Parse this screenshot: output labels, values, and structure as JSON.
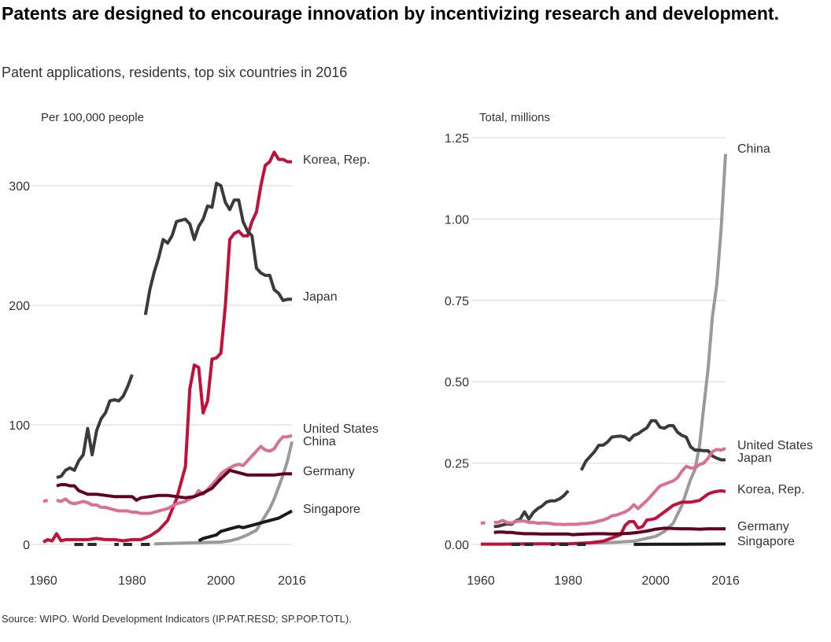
{
  "title": "Patents are designed to encourage innovation by incentivizing research and development.",
  "subtitle": "Patent applications, residents, top six countries in 2016",
  "source": "Source: WIPO. World Development Indicators (IP.PAT.RESD; SP.POP.TOTL).",
  "colors": {
    "Korea, Rep.": "#c2103a",
    "Japan": "#3b3b3b",
    "United States": "#db6f96",
    "China": "#9a9a9a",
    "Germany": "#610021",
    "Singapore": "#1a1a1a"
  },
  "chart_data": [
    {
      "type": "line",
      "ylabel": "Per 100,000 people",
      "xticks": [
        "1960",
        "1980",
        "2000",
        "2016"
      ],
      "xlim": [
        1960,
        2016
      ],
      "ylim": [
        0,
        330
      ],
      "yticks": [
        0,
        100,
        200,
        300
      ],
      "ytick_labels": [
        "0",
        "100",
        "200",
        "300"
      ],
      "grid": true,
      "series": [
        {
          "name": "Korea, Rep.",
          "x": [
            1960,
            1961,
            1962,
            1963,
            1964,
            1965,
            1968,
            1970,
            1972,
            1974,
            1976,
            1978,
            1980,
            1982,
            1984,
            1986,
            1988,
            1990,
            1992,
            1993,
            1994,
            1995,
            1996,
            1997,
            1998,
            1999,
            2000,
            2001,
            2002,
            2003,
            2004,
            2005,
            2006,
            2007,
            2008,
            2009,
            2010,
            2011,
            2012,
            2013,
            2014,
            2015,
            2016
          ],
          "y": [
            2,
            4,
            3,
            9,
            3,
            4,
            4,
            4,
            5,
            4,
            4,
            3,
            4,
            4,
            7,
            12,
            20,
            38,
            65,
            130,
            150,
            148,
            110,
            120,
            155,
            156,
            160,
            200,
            255,
            260,
            262,
            258,
            258,
            270,
            278,
            300,
            317,
            320,
            328,
            322,
            322,
            320,
            320
          ]
        },
        {
          "name": "Japan",
          "x": [
            1963,
            1964,
            1965,
            1966,
            1967,
            1968,
            1969,
            1970,
            1971,
            1972,
            1973,
            1974,
            1975,
            1976,
            1977,
            1978,
            1979,
            1980,
            null,
            1983,
            1984,
            1985,
            1986,
            1987,
            1988,
            1989,
            1990,
            1991,
            1992,
            1993,
            1994,
            1995,
            1996,
            1997,
            1998,
            1999,
            2000,
            2001,
            2002,
            2003,
            2004,
            2005,
            2006,
            2007,
            2008,
            2009,
            2010,
            2011,
            2012,
            2013,
            2014,
            2015,
            2016
          ],
          "y": [
            56,
            57,
            62,
            64,
            62,
            70,
            75,
            97,
            75,
            95,
            105,
            110,
            120,
            121,
            120,
            124,
            132,
            142,
            null,
            192,
            213,
            228,
            240,
            255,
            252,
            258,
            270,
            271,
            272,
            268,
            255,
            266,
            272,
            283,
            282,
            302,
            300,
            286,
            280,
            288,
            288,
            270,
            262,
            258,
            231,
            227,
            225,
            225,
            213,
            210,
            204,
            205,
            205
          ]
        },
        {
          "name": "United States",
          "x": [
            1960,
            1961,
            null,
            1963,
            1964,
            1965,
            1966,
            1967,
            1968,
            1969,
            1970,
            1971,
            1972,
            1973,
            1974,
            1975,
            1976,
            1977,
            1978,
            1979,
            1980,
            1981,
            1982,
            1983,
            1984,
            1985,
            1986,
            1987,
            1988,
            1989,
            1990,
            1991,
            1992,
            1993,
            1994,
            1995,
            1996,
            1997,
            1998,
            1999,
            2000,
            2001,
            2002,
            2003,
            2004,
            2005,
            2006,
            2007,
            2008,
            2009,
            2010,
            2011,
            2012,
            2013,
            2014,
            2015,
            2016
          ],
          "y": [
            36,
            37,
            null,
            37,
            36,
            38,
            35,
            34,
            35,
            36,
            35,
            33,
            33,
            31,
            31,
            30,
            29,
            28,
            28,
            28,
            27,
            27,
            26,
            26,
            26,
            27,
            28,
            29,
            30,
            32,
            34,
            35,
            36,
            38,
            40,
            45,
            42,
            46,
            50,
            54,
            59,
            62,
            64,
            66,
            67,
            66,
            70,
            74,
            78,
            82,
            79,
            78,
            80,
            86,
            90,
            90,
            91
          ]
        },
        {
          "name": "China",
          "x": [
            1985,
            1990,
            1995,
            2000,
            2002,
            2004,
            2006,
            2008,
            2009,
            2010,
            2011,
            2012,
            2013,
            2014,
            2015,
            2016
          ],
          "y": [
            0.5,
            1,
            1.5,
            2,
            3,
            5,
            8,
            12,
            18,
            24,
            30,
            38,
            48,
            58,
            70,
            86
          ]
        },
        {
          "name": "Germany",
          "x": [
            1963,
            1964,
            1965,
            1966,
            1967,
            1968,
            1970,
            1972,
            1974,
            1976,
            1978,
            1980,
            1981,
            1982,
            1984,
            1986,
            1988,
            1990,
            1992,
            1994,
            1996,
            1998,
            2000,
            2002,
            2004,
            2006,
            2008,
            2010,
            2012,
            2014,
            2016
          ],
          "y": [
            49,
            50,
            50,
            49,
            49,
            45,
            42,
            42,
            41,
            40,
            40,
            40,
            37,
            39,
            40,
            41,
            41,
            40,
            39,
            40,
            43,
            47,
            55,
            62,
            60,
            58,
            58,
            58,
            58,
            59,
            59
          ]
        },
        {
          "name": "Singapore",
          "x": [
            1995,
            1996,
            1997,
            1998,
            1999,
            2000,
            2001,
            2002,
            2003,
            2004,
            2005,
            2006,
            2007,
            2008,
            2009,
            2010,
            2011,
            2012,
            2013,
            2014,
            2015,
            2016
          ],
          "y": [
            3,
            5,
            6,
            7,
            8,
            11,
            12,
            13,
            14,
            15,
            14,
            15,
            16,
            17,
            18,
            19,
            20,
            21,
            22,
            24,
            26,
            28
          ]
        },
        {
          "name": "",
          "x": [
            1967,
            1969,
            null,
            1970,
            1972,
            null,
            1976,
            1977,
            null,
            1978,
            1980,
            null,
            1982,
            1984
          ],
          "y": [
            0,
            0,
            null,
            0,
            0,
            null,
            0,
            0,
            null,
            0,
            0,
            null,
            0,
            0
          ]
        }
      ],
      "labels": [
        {
          "text": "Korea, Rep.",
          "series": "Korea, Rep."
        },
        {
          "text": "Japan",
          "series": "Japan"
        },
        {
          "text": "United States",
          "series": "United States"
        },
        {
          "text": "China",
          "series": "China"
        },
        {
          "text": "Germany",
          "series": "Germany"
        },
        {
          "text": "Singapore",
          "series": "Singapore"
        }
      ]
    },
    {
      "type": "line",
      "ylabel": "Total, millions",
      "xticks": [
        "1960",
        "1980",
        "2000",
        "2016"
      ],
      "xlim": [
        1960,
        2016
      ],
      "ylim": [
        0,
        1.25
      ],
      "yticks": [
        0,
        0.25,
        0.5,
        0.75,
        1.0,
        1.25
      ],
      "ytick_labels": [
        "0.00",
        "0.25",
        "0.50",
        "0.75",
        "1.00",
        "1.25"
      ],
      "grid": true,
      "series": [
        {
          "name": "China",
          "x": [
            1985,
            1990,
            1995,
            2000,
            2002,
            2004,
            2006,
            2008,
            2009,
            2010,
            2011,
            2012,
            2013,
            2014,
            2015,
            2016
          ],
          "y": [
            0.004,
            0.006,
            0.01,
            0.025,
            0.04,
            0.065,
            0.12,
            0.2,
            0.23,
            0.3,
            0.42,
            0.54,
            0.7,
            0.8,
            0.97,
            1.2
          ]
        },
        {
          "name": "Japan",
          "x": [
            1963,
            1964,
            1965,
            1966,
            1967,
            1968,
            1969,
            1970,
            1971,
            1972,
            1973,
            1974,
            1975,
            1976,
            1977,
            1978,
            1979,
            1980,
            null,
            1983,
            1984,
            1985,
            1986,
            1987,
            1988,
            1989,
            1990,
            1991,
            1992,
            1993,
            1994,
            1995,
            1996,
            1997,
            1998,
            1999,
            2000,
            2001,
            2002,
            2003,
            2004,
            2005,
            2006,
            2007,
            2008,
            2009,
            2010,
            2011,
            2012,
            2013,
            2014,
            2015,
            2016
          ],
          "y": [
            0.055,
            0.056,
            0.06,
            0.063,
            0.062,
            0.072,
            0.078,
            0.1,
            0.078,
            0.098,
            0.11,
            0.118,
            0.13,
            0.134,
            0.134,
            0.14,
            0.15,
            0.165,
            null,
            0.228,
            0.255,
            0.27,
            0.285,
            0.305,
            0.305,
            0.315,
            0.33,
            0.332,
            0.333,
            0.33,
            0.32,
            0.335,
            0.34,
            0.35,
            0.358,
            0.38,
            0.38,
            0.36,
            0.357,
            0.365,
            0.365,
            0.345,
            0.335,
            0.33,
            0.3,
            0.29,
            0.29,
            0.288,
            0.288,
            0.272,
            0.265,
            0.26,
            0.26
          ]
        },
        {
          "name": "United States",
          "x": [
            1960,
            1961,
            null,
            1963,
            1964,
            1965,
            1966,
            1967,
            1968,
            1969,
            1970,
            1971,
            1972,
            1973,
            1974,
            1975,
            1976,
            1977,
            1978,
            1979,
            1980,
            1981,
            1982,
            1983,
            1984,
            1985,
            1986,
            1987,
            1988,
            1989,
            1990,
            1991,
            1992,
            1993,
            1994,
            1995,
            1996,
            1997,
            1998,
            1999,
            2000,
            2001,
            2002,
            2003,
            2004,
            2005,
            2006,
            2007,
            2008,
            2009,
            2010,
            2011,
            2012,
            2013,
            2014,
            2015,
            2016
          ],
          "y": [
            0.065,
            0.067,
            null,
            0.068,
            0.068,
            0.074,
            0.067,
            0.066,
            0.07,
            0.072,
            0.072,
            0.068,
            0.068,
            0.065,
            0.066,
            0.066,
            0.064,
            0.062,
            0.062,
            0.061,
            0.062,
            0.062,
            0.062,
            0.064,
            0.064,
            0.066,
            0.068,
            0.072,
            0.075,
            0.08,
            0.088,
            0.09,
            0.095,
            0.1,
            0.108,
            0.122,
            0.11,
            0.123,
            0.135,
            0.15,
            0.165,
            0.18,
            0.185,
            0.19,
            0.195,
            0.205,
            0.225,
            0.24,
            0.235,
            0.235,
            0.245,
            0.25,
            0.265,
            0.285,
            0.292,
            0.29,
            0.295
          ]
        },
        {
          "name": "Korea, Rep.",
          "x": [
            1960,
            1965,
            1970,
            1975,
            1980,
            1985,
            1988,
            1990,
            1992,
            1993,
            1994,
            1995,
            1996,
            1997,
            1998,
            1999,
            2000,
            2002,
            2004,
            2006,
            2008,
            2010,
            2012,
            2013,
            2014,
            2015,
            2016
          ],
          "y": [
            0.001,
            0.001,
            0.002,
            0.002,
            0.002,
            0.005,
            0.01,
            0.02,
            0.03,
            0.058,
            0.07,
            0.07,
            0.05,
            0.055,
            0.075,
            0.077,
            0.08,
            0.1,
            0.12,
            0.13,
            0.13,
            0.135,
            0.155,
            0.16,
            0.163,
            0.165,
            0.163
          ]
        },
        {
          "name": "Germany",
          "x": [
            1963,
            1964,
            1965,
            1966,
            1967,
            1968,
            1970,
            1972,
            1974,
            1976,
            1978,
            1980,
            1981,
            1982,
            1984,
            1986,
            1988,
            1990,
            1992,
            1994,
            1996,
            1998,
            2000,
            2002,
            2004,
            2006,
            2008,
            2010,
            2012,
            2014,
            2016
          ],
          "y": [
            0.037,
            0.038,
            0.038,
            0.037,
            0.037,
            0.035,
            0.033,
            0.033,
            0.032,
            0.032,
            0.032,
            0.032,
            0.03,
            0.031,
            0.032,
            0.033,
            0.033,
            0.032,
            0.033,
            0.034,
            0.037,
            0.041,
            0.047,
            0.05,
            0.049,
            0.048,
            0.048,
            0.047,
            0.048,
            0.048,
            0.048
          ]
        },
        {
          "name": "Singapore",
          "x": [
            1995,
            2000,
            2005,
            2010,
            2016
          ],
          "y": [
            0.0003,
            0.0004,
            0.0006,
            0.0009,
            0.0015
          ]
        },
        {
          "name": "",
          "x": [
            1967,
            1969,
            null,
            1970,
            1972,
            null,
            1976,
            1977,
            null,
            1978,
            1980,
            null,
            1982,
            1984
          ],
          "y": [
            0,
            0,
            null,
            0,
            0,
            null,
            0,
            0,
            null,
            0,
            0,
            null,
            0,
            0
          ]
        }
      ],
      "labels": [
        {
          "text": "China",
          "series": "China"
        },
        {
          "text": "United States",
          "series": "United States"
        },
        {
          "text": "Japan",
          "series": "Japan"
        },
        {
          "text": "Korea, Rep.",
          "series": "Korea, Rep."
        },
        {
          "text": "Germany",
          "series": "Germany"
        },
        {
          "text": "Singapore",
          "series": "Singapore"
        }
      ]
    }
  ]
}
